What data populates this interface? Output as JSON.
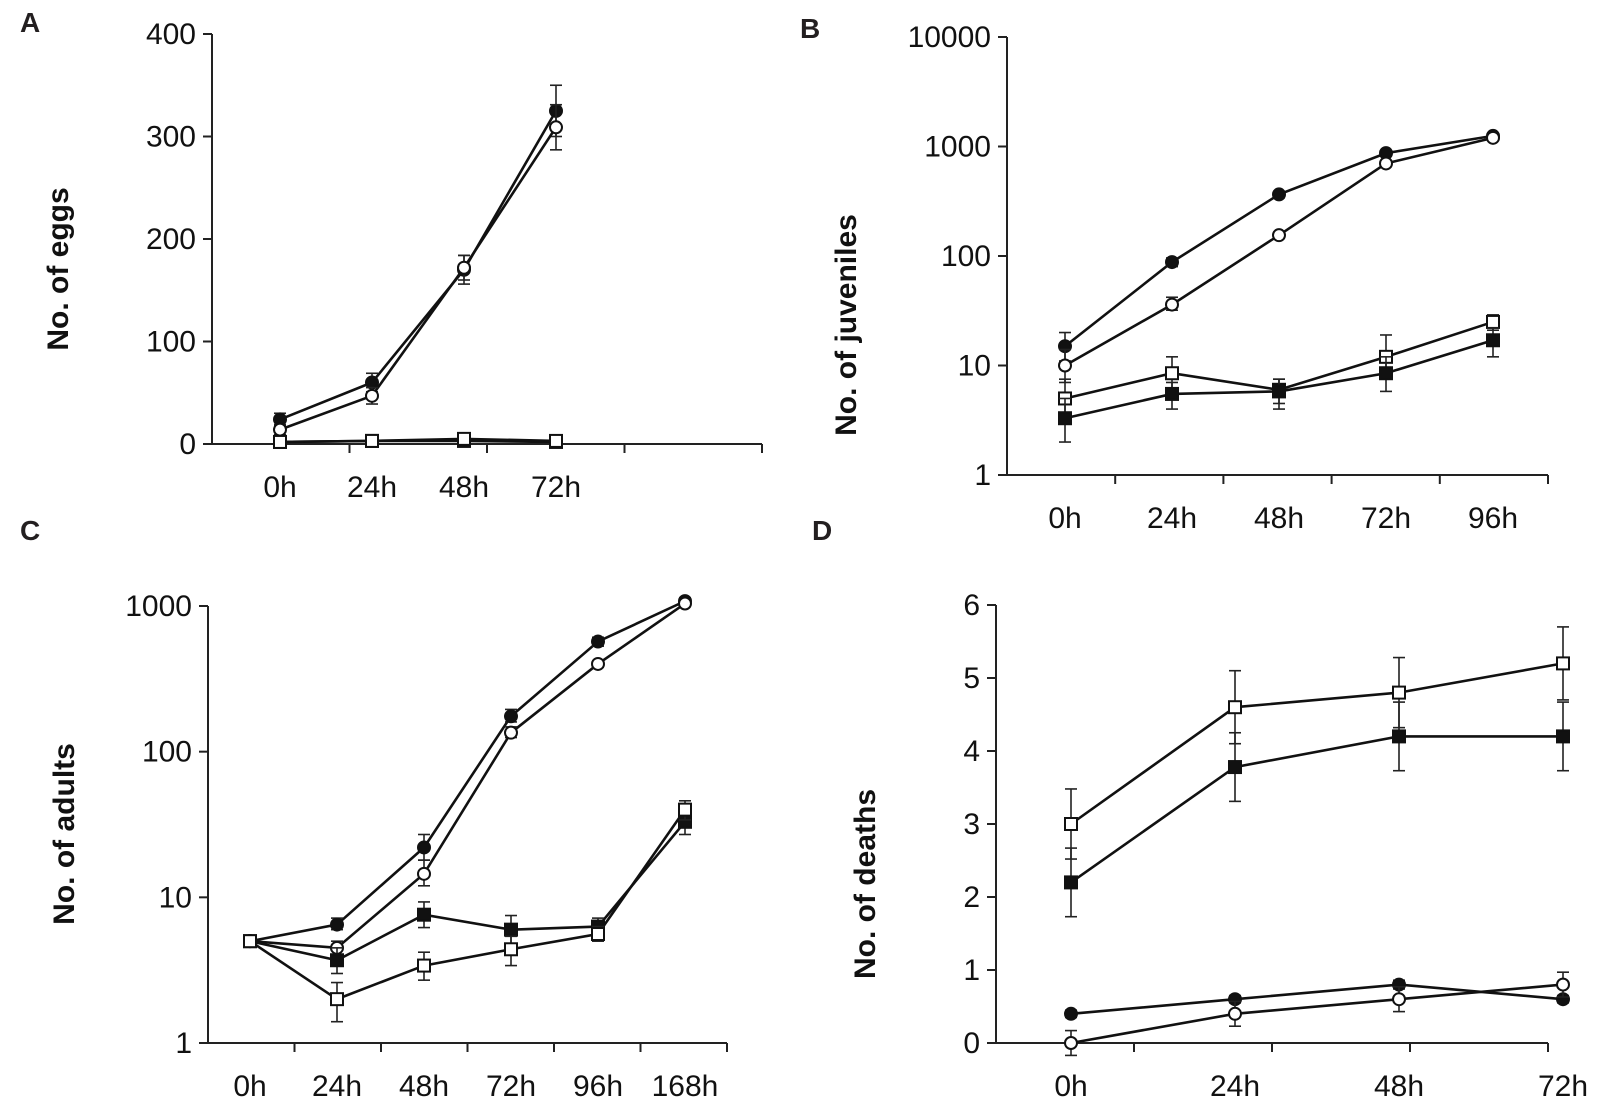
{
  "chart_data": [
    {
      "panel": "A",
      "type": "line",
      "yscale": "linear",
      "ylabel": "No. of eggs",
      "xlabel": "",
      "categories": [
        "0h",
        "24h",
        "48h",
        "72h"
      ],
      "ylim": [
        0,
        400
      ],
      "yticks": [
        0,
        100,
        200,
        300,
        400
      ],
      "ytick_labels": [
        "0",
        "100",
        "200",
        "300",
        "400"
      ],
      "series": [
        {
          "name": "filled circle",
          "marker": "circle",
          "filled": true,
          "values": [
            24,
            60,
            170,
            325
          ],
          "errors": [
            6,
            9,
            14,
            25
          ]
        },
        {
          "name": "open circle",
          "marker": "circle",
          "filled": false,
          "values": [
            14,
            47,
            172,
            309
          ],
          "errors": [
            5,
            8,
            12,
            22
          ]
        },
        {
          "name": "filled square",
          "marker": "square",
          "filled": true,
          "values": [
            2,
            3,
            3,
            2
          ],
          "errors": [
            1,
            1,
            1,
            1
          ]
        },
        {
          "name": "open square",
          "marker": "square",
          "filled": false,
          "values": [
            2,
            3,
            5,
            3
          ],
          "errors": [
            1,
            1,
            1,
            1
          ]
        }
      ]
    },
    {
      "panel": "B",
      "type": "line",
      "yscale": "log",
      "ylabel": "No. of juveniles",
      "xlabel": "",
      "categories": [
        "0h",
        "24h",
        "48h",
        "72h",
        "96h"
      ],
      "ylim": [
        1,
        10000
      ],
      "yticks": [
        1,
        10,
        100,
        1000,
        10000
      ],
      "ytick_labels": [
        "1",
        "10",
        "100",
        "1000",
        "10000"
      ],
      "series": [
        {
          "name": "filled circle",
          "marker": "circle",
          "filled": true,
          "values": [
            15,
            88,
            365,
            870,
            1250
          ],
          "err_lo": [
            11,
            80,
            340,
            820,
            1200
          ],
          "err_hi": [
            20,
            96,
            390,
            920,
            1300
          ]
        },
        {
          "name": "open circle",
          "marker": "circle",
          "filled": false,
          "values": [
            10,
            36,
            155,
            700,
            1200
          ],
          "err_lo": [
            7,
            32,
            145,
            660,
            1150
          ],
          "err_hi": [
            14,
            42,
            165,
            740,
            1250
          ]
        },
        {
          "name": "open square",
          "marker": "square",
          "filled": false,
          "values": [
            5,
            8.5,
            6,
            12,
            25
          ],
          "err_lo": [
            3,
            6,
            4.5,
            8,
            21
          ],
          "err_hi": [
            7.5,
            12,
            7.5,
            19,
            29
          ]
        },
        {
          "name": "filled square",
          "marker": "square",
          "filled": true,
          "values": [
            3.3,
            5.5,
            5.8,
            8.5,
            17
          ],
          "err_lo": [
            2,
            4,
            4,
            5.8,
            12
          ],
          "err_hi": [
            5,
            7,
            7.5,
            12,
            22
          ]
        }
      ]
    },
    {
      "panel": "C",
      "type": "line",
      "yscale": "log",
      "ylabel": "No. of adults",
      "xlabel": "",
      "categories": [
        "0h",
        "24h",
        "48h",
        "72h",
        "96h",
        "168h"
      ],
      "ylim": [
        1,
        1000
      ],
      "yticks": [
        1,
        10,
        100,
        1000
      ],
      "ytick_labels": [
        "1",
        "10",
        "100",
        "1000"
      ],
      "series": [
        {
          "name": "filled circle",
          "marker": "circle",
          "filled": true,
          "values": [
            5,
            6.5,
            22,
            175,
            570,
            1080
          ],
          "err_lo": [
            4.6,
            6,
            18,
            160,
            530,
            1020
          ],
          "err_hi": [
            5.4,
            7.2,
            27,
            195,
            610,
            1140
          ]
        },
        {
          "name": "open circle",
          "marker": "circle",
          "filled": false,
          "values": [
            5,
            4.5,
            14.5,
            135,
            400,
            1040
          ],
          "err_lo": [
            4.6,
            4,
            12,
            125,
            380,
            990
          ],
          "err_hi": [
            5.4,
            5,
            18,
            148,
            420,
            1090
          ]
        },
        {
          "name": "filled square",
          "marker": "square",
          "filled": true,
          "values": [
            5,
            3.7,
            7.6,
            6,
            6.3,
            33
          ],
          "err_lo": [
            4.6,
            3,
            6.2,
            4.8,
            5.5,
            27
          ],
          "err_hi": [
            5.4,
            4.5,
            9.3,
            7.5,
            7.2,
            40
          ]
        },
        {
          "name": "open square",
          "marker": "square",
          "filled": false,
          "values": [
            5,
            2,
            3.4,
            4.4,
            5.6,
            40
          ],
          "err_lo": [
            4.6,
            1.4,
            2.7,
            3.4,
            5,
            34
          ],
          "err_hi": [
            5.4,
            2.6,
            4.2,
            5.4,
            6.3,
            46
          ]
        }
      ]
    },
    {
      "panel": "D",
      "type": "line",
      "yscale": "linear",
      "ylabel": "No. of deaths",
      "xlabel": "",
      "categories": [
        "0h",
        "24h",
        "48h",
        "72h"
      ],
      "ylim": [
        0,
        6
      ],
      "yticks": [
        0,
        1,
        2,
        3,
        4,
        5,
        6
      ],
      "ytick_labels": [
        "0",
        "1",
        "2",
        "3",
        "4",
        "5",
        "6"
      ],
      "series": [
        {
          "name": "open square",
          "marker": "square",
          "filled": false,
          "values": [
            3.0,
            4.6,
            4.8,
            5.2
          ],
          "errors": [
            0.48,
            0.5,
            0.48,
            0.5
          ]
        },
        {
          "name": "filled square",
          "marker": "square",
          "filled": true,
          "values": [
            2.2,
            3.78,
            4.2,
            4.2
          ],
          "errors": [
            0.47,
            0.47,
            0.47,
            0.47
          ]
        },
        {
          "name": "filled circle",
          "marker": "circle",
          "filled": true,
          "values": [
            0.4,
            0.6,
            0.8,
            0.6
          ],
          "errors": [
            0.05,
            0.05,
            0.06,
            0.05
          ]
        },
        {
          "name": "open circle",
          "marker": "circle",
          "filled": false,
          "values": [
            0.0,
            0.4,
            0.6,
            0.8
          ],
          "errors": [
            0.17,
            0.17,
            0.17,
            0.17
          ]
        }
      ]
    }
  ]
}
